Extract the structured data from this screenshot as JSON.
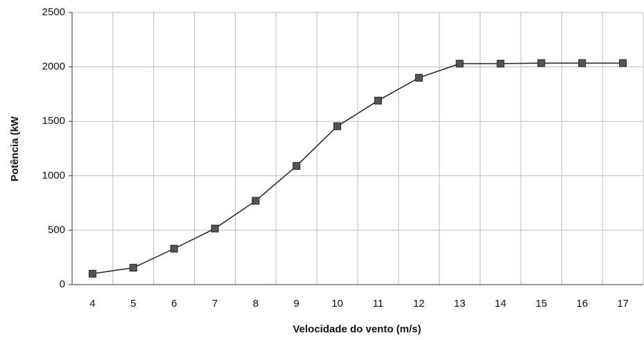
{
  "chart_data": {
    "type": "line",
    "x_label": "Velocidade do vento (m/s)",
    "y_label": "Potência (kW",
    "categories": [
      "4",
      "5",
      "6",
      "7",
      "8",
      "9",
      "10",
      "11",
      "12",
      "13",
      "14",
      "15",
      "16",
      "17"
    ],
    "series": [
      {
        "name": "Potência",
        "color": "#222222",
        "values": [
          100,
          155,
          330,
          515,
          770,
          1090,
          1455,
          1690,
          1900,
          2030,
          2030,
          2035,
          2035,
          2035
        ]
      }
    ],
    "ylim": [
      0,
      2500
    ],
    "yticks": [
      0,
      500,
      1000,
      1500,
      2000,
      2500
    ],
    "grid": true
  }
}
